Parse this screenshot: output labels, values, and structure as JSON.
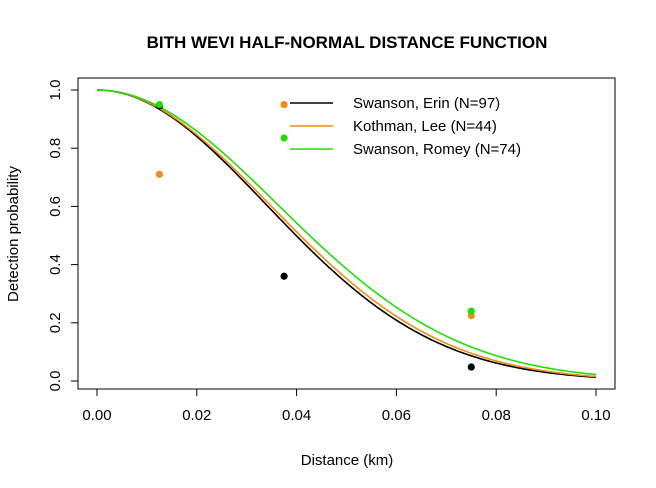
{
  "chart_data": {
    "type": "line",
    "title": "BITH WEVI HALF-NORMAL DISTANCE FUNCTION",
    "xlabel": "Distance (km)",
    "ylabel": "Detection probability",
    "xlim": [
      0,
      0.1
    ],
    "ylim": [
      0,
      1.0
    ],
    "x_ticks": [
      0.0,
      0.02,
      0.04,
      0.06,
      0.08,
      0.1
    ],
    "x_tick_labels": [
      "0.00",
      "0.02",
      "0.04",
      "0.06",
      "0.08",
      "0.10"
    ],
    "y_ticks": [
      0.0,
      0.2,
      0.4,
      0.6,
      0.8,
      1.0
    ],
    "y_tick_labels": [
      "0.0",
      "0.2",
      "0.4",
      "0.6",
      "0.8",
      "1.0"
    ],
    "grid": false,
    "legend_position": "top-right",
    "series": [
      {
        "name": "Swanson, Erin (N=97)",
        "color": "#000000",
        "sigma": 0.0339,
        "points_x": [
          0.0125,
          0.0375,
          0.075
        ],
        "points_y": [
          0.945,
          0.36,
          0.048
        ]
      },
      {
        "name": "Kothman, Lee (N=44)",
        "color": "#f28c0f",
        "sigma": 0.0346,
        "points_x": [
          0.0125,
          0.0375,
          0.075
        ],
        "points_y": [
          0.71,
          0.95,
          0.225
        ]
      },
      {
        "name": "Swanson, Romey (N=74)",
        "color": "#22dd0a",
        "sigma": 0.0362,
        "points_x": [
          0.0125,
          0.0375,
          0.075
        ],
        "points_y": [
          0.95,
          0.835,
          0.24
        ]
      }
    ]
  }
}
